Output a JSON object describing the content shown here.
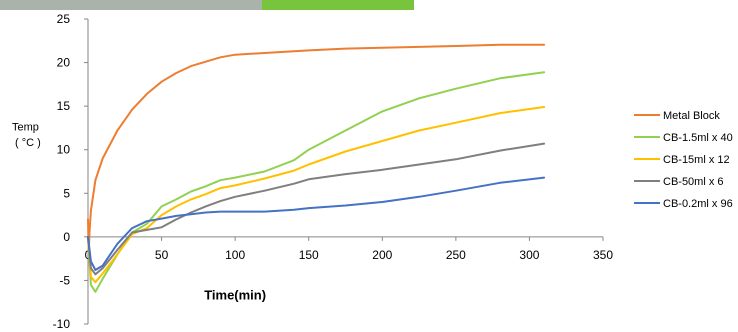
{
  "chart_data": {
    "type": "line",
    "title": "",
    "xlabel": "Time(min)",
    "ylabel": "Temp",
    "ylabel_unit": "( °C )",
    "xlim": [
      0,
      350
    ],
    "ylim": [
      -10,
      25
    ],
    "xticks": [
      0,
      50,
      100,
      150,
      200,
      250,
      300,
      350
    ],
    "yticks": [
      -10,
      -5,
      0,
      5,
      10,
      15,
      20,
      25
    ],
    "grid": false,
    "legend_position": "right",
    "series": [
      {
        "name": "Metal Block",
        "color": "#ED7D31",
        "points": [
          [
            0,
            2.0
          ],
          [
            0.5,
            -2.0
          ],
          [
            1,
            0.5
          ],
          [
            2,
            3.0
          ],
          [
            5,
            6.5
          ],
          [
            10,
            9.0
          ],
          [
            20,
            12.2
          ],
          [
            30,
            14.6
          ],
          [
            40,
            16.4
          ],
          [
            50,
            17.8
          ],
          [
            60,
            18.8
          ],
          [
            70,
            19.6
          ],
          [
            80,
            20.1
          ],
          [
            90,
            20.6
          ],
          [
            100,
            20.9
          ],
          [
            120,
            21.1
          ],
          [
            150,
            21.4
          ],
          [
            175,
            21.6
          ],
          [
            200,
            21.7
          ],
          [
            250,
            21.9
          ],
          [
            280,
            22.05
          ],
          [
            310,
            22.05
          ]
        ]
      },
      {
        "name": "CB-1.5ml x 40",
        "color": "#92D050",
        "points": [
          [
            0,
            0.0
          ],
          [
            2,
            -5.5
          ],
          [
            5,
            -6.3
          ],
          [
            10,
            -4.8
          ],
          [
            20,
            -2.0
          ],
          [
            30,
            0.5
          ],
          [
            40,
            1.5
          ],
          [
            50,
            3.5
          ],
          [
            60,
            4.3
          ],
          [
            70,
            5.2
          ],
          [
            80,
            5.8
          ],
          [
            90,
            6.5
          ],
          [
            100,
            6.8
          ],
          [
            120,
            7.5
          ],
          [
            140,
            8.8
          ],
          [
            150,
            10.0
          ],
          [
            175,
            12.2
          ],
          [
            200,
            14.4
          ],
          [
            225,
            15.9
          ],
          [
            250,
            17.0
          ],
          [
            280,
            18.2
          ],
          [
            310,
            18.9
          ]
        ]
      },
      {
        "name": "CB-15ml x 12",
        "color": "#FFC000",
        "points": [
          [
            0,
            0.0
          ],
          [
            2,
            -4.6
          ],
          [
            5,
            -5.2
          ],
          [
            10,
            -4.2
          ],
          [
            20,
            -2.0
          ],
          [
            30,
            0.3
          ],
          [
            40,
            1.0
          ],
          [
            50,
            2.5
          ],
          [
            60,
            3.5
          ],
          [
            70,
            4.3
          ],
          [
            80,
            4.9
          ],
          [
            90,
            5.6
          ],
          [
            100,
            5.9
          ],
          [
            120,
            6.7
          ],
          [
            140,
            7.6
          ],
          [
            150,
            8.3
          ],
          [
            175,
            9.8
          ],
          [
            200,
            11.0
          ],
          [
            225,
            12.2
          ],
          [
            250,
            13.1
          ],
          [
            280,
            14.2
          ],
          [
            310,
            14.9
          ]
        ]
      },
      {
        "name": "CB-50ml x 6",
        "color": "#7F7F7F",
        "points": [
          [
            0,
            0.0
          ],
          [
            2,
            -3.6
          ],
          [
            5,
            -4.3
          ],
          [
            10,
            -3.6
          ],
          [
            20,
            -1.5
          ],
          [
            30,
            0.5
          ],
          [
            40,
            0.8
          ],
          [
            50,
            1.1
          ],
          [
            60,
            2.0
          ],
          [
            70,
            2.8
          ],
          [
            80,
            3.5
          ],
          [
            90,
            4.1
          ],
          [
            100,
            4.6
          ],
          [
            120,
            5.3
          ],
          [
            140,
            6.1
          ],
          [
            150,
            6.6
          ],
          [
            175,
            7.2
          ],
          [
            200,
            7.7
          ],
          [
            225,
            8.3
          ],
          [
            250,
            8.9
          ],
          [
            280,
            9.9
          ],
          [
            310,
            10.7
          ]
        ]
      },
      {
        "name": "CB-0.2ml x 96",
        "color": "#4472C4",
        "points": [
          [
            0,
            0.0
          ],
          [
            2,
            -2.8
          ],
          [
            5,
            -3.8
          ],
          [
            10,
            -3.3
          ],
          [
            20,
            -0.8
          ],
          [
            30,
            1.0
          ],
          [
            40,
            1.8
          ],
          [
            50,
            2.1
          ],
          [
            60,
            2.4
          ],
          [
            70,
            2.6
          ],
          [
            80,
            2.8
          ],
          [
            90,
            2.9
          ],
          [
            100,
            2.9
          ],
          [
            120,
            2.9
          ],
          [
            140,
            3.1
          ],
          [
            150,
            3.3
          ],
          [
            175,
            3.6
          ],
          [
            200,
            4.0
          ],
          [
            225,
            4.6
          ],
          [
            250,
            5.3
          ],
          [
            280,
            6.2
          ],
          [
            310,
            6.8
          ]
        ]
      }
    ]
  }
}
